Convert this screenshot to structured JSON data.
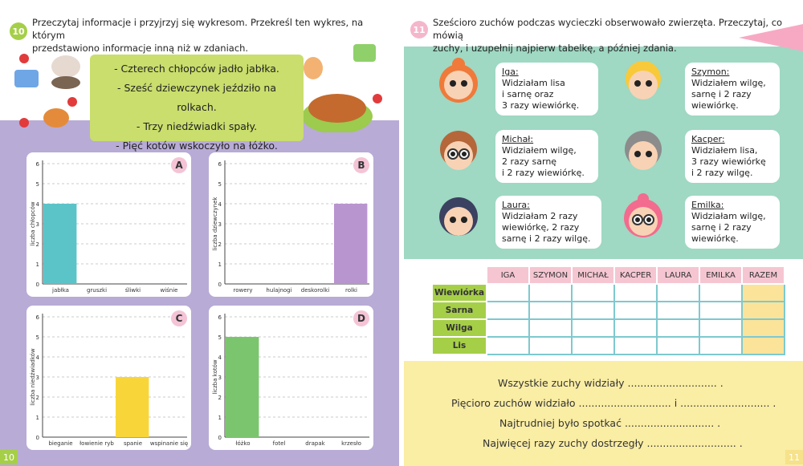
{
  "left_page": {
    "task_number": "10",
    "instruction": "Przeczytaj informacje i przyjrzyj się wykresom. Przekreśl ten wykres, na którym przedstawiono informacje inną niż w zdaniach.",
    "instruction_line1": "Przeczytaj informacje i przyjrzyj się wykresom. Przekreśl ten wykres, na którym",
    "instruction_line2": "przedstawiono informacje inną niż w zdaniach.",
    "sentences": [
      "- Czterech chłopców jadło jabłka.",
      "- Sześć dziewczynek jeździło na rolkach.",
      "- Trzy niedźwiadki spały.",
      "- Pięć kotów wskoczyło na łóżko."
    ],
    "page_number": "10"
  },
  "chart_data": [
    {
      "type": "bar",
      "letter": "A",
      "ylabel": "liczba chłopców",
      "ylim": [
        0,
        6
      ],
      "categories": [
        "jabłka",
        "gruszki",
        "śliwki",
        "wiśnie"
      ],
      "values": [
        4,
        0,
        0,
        0
      ],
      "color": "#5bc4c8"
    },
    {
      "type": "bar",
      "letter": "B",
      "ylabel": "liczba dziewczynek",
      "ylim": [
        0,
        6
      ],
      "categories": [
        "rowery",
        "hulajnogi",
        "deskorolki",
        "rolki"
      ],
      "values": [
        0,
        0,
        0,
        4
      ],
      "color": "#b995cf"
    },
    {
      "type": "bar",
      "letter": "C",
      "ylabel": "liczba niedźwiadków",
      "ylim": [
        0,
        6
      ],
      "categories": [
        "bieganie",
        "łowienie ryb",
        "spanie",
        "wspinanie się"
      ],
      "values": [
        0,
        0,
        3,
        0
      ],
      "color": "#f8d63a"
    },
    {
      "type": "bar",
      "letter": "D",
      "ylabel": "liczba kotów",
      "ylim": [
        0,
        6
      ],
      "categories": [
        "łóżko",
        "fotel",
        "drapak",
        "krzesło"
      ],
      "values": [
        5,
        0,
        0,
        0
      ],
      "color": "#7cc56f"
    }
  ],
  "right_page": {
    "task_number": "11",
    "instruction_line1": "Sześcioro zuchów podczas wycieczki obserwowało zwierzęta. Przeczytaj, co mówią",
    "instruction_line2": "zuchy, i uzupełnij najpierw tabelkę, a później zdania.",
    "scouts": [
      {
        "name": "Iga:",
        "lines": [
          "Widziałam lisa",
          "i sarnę oraz",
          "3 razy wiewiórkę."
        ]
      },
      {
        "name": "Szymon:",
        "lines": [
          "Widziałem wilgę,",
          "sarnę i 2 razy",
          "wiewiórkę."
        ]
      },
      {
        "name": "Michał:",
        "lines": [
          "Widziałem wilgę,",
          "2 razy sarnę",
          "i 2 razy wiewiórkę."
        ]
      },
      {
        "name": "Kacper:",
        "lines": [
          "Widziałem lisa,",
          "3 razy wiewiórkę",
          "i 2 razy wilgę."
        ]
      },
      {
        "name": "Laura:",
        "lines": [
          "Widziałam 2 razy",
          "wiewiórkę, 2 razy",
          "sarnę i 2 razy wilgę."
        ]
      },
      {
        "name": "Emilka:",
        "lines": [
          "Widziałam wilgę,",
          "sarnę i 2 razy",
          "wiewiórkę."
        ]
      }
    ],
    "table": {
      "headers": [
        "IGA",
        "SZYMON",
        "MICHAŁ",
        "KACPER",
        "LAURA",
        "EMILKA",
        "RAZEM"
      ],
      "rows": [
        "Wiewiórka",
        "Sarna",
        "Wilga",
        "Lis"
      ]
    },
    "fill_sentences": [
      "Wszystkie zuchy widziały ............................ .",
      "Pięcioro zuchów widziało ............................. i ............................ .",
      "Najtrudniej było spotkać ............................ .",
      "Najwięcej razy zuchy dostrzegły ............................ ."
    ],
    "page_number": "11"
  },
  "colors": {
    "lime": "#a6cf48",
    "purple_bg": "#b8abd6",
    "mint_bg": "#9fd8c3",
    "yellow_bg": "#faeda4",
    "pink": "#f5c6d2",
    "table_border": "#7ec9cf"
  }
}
